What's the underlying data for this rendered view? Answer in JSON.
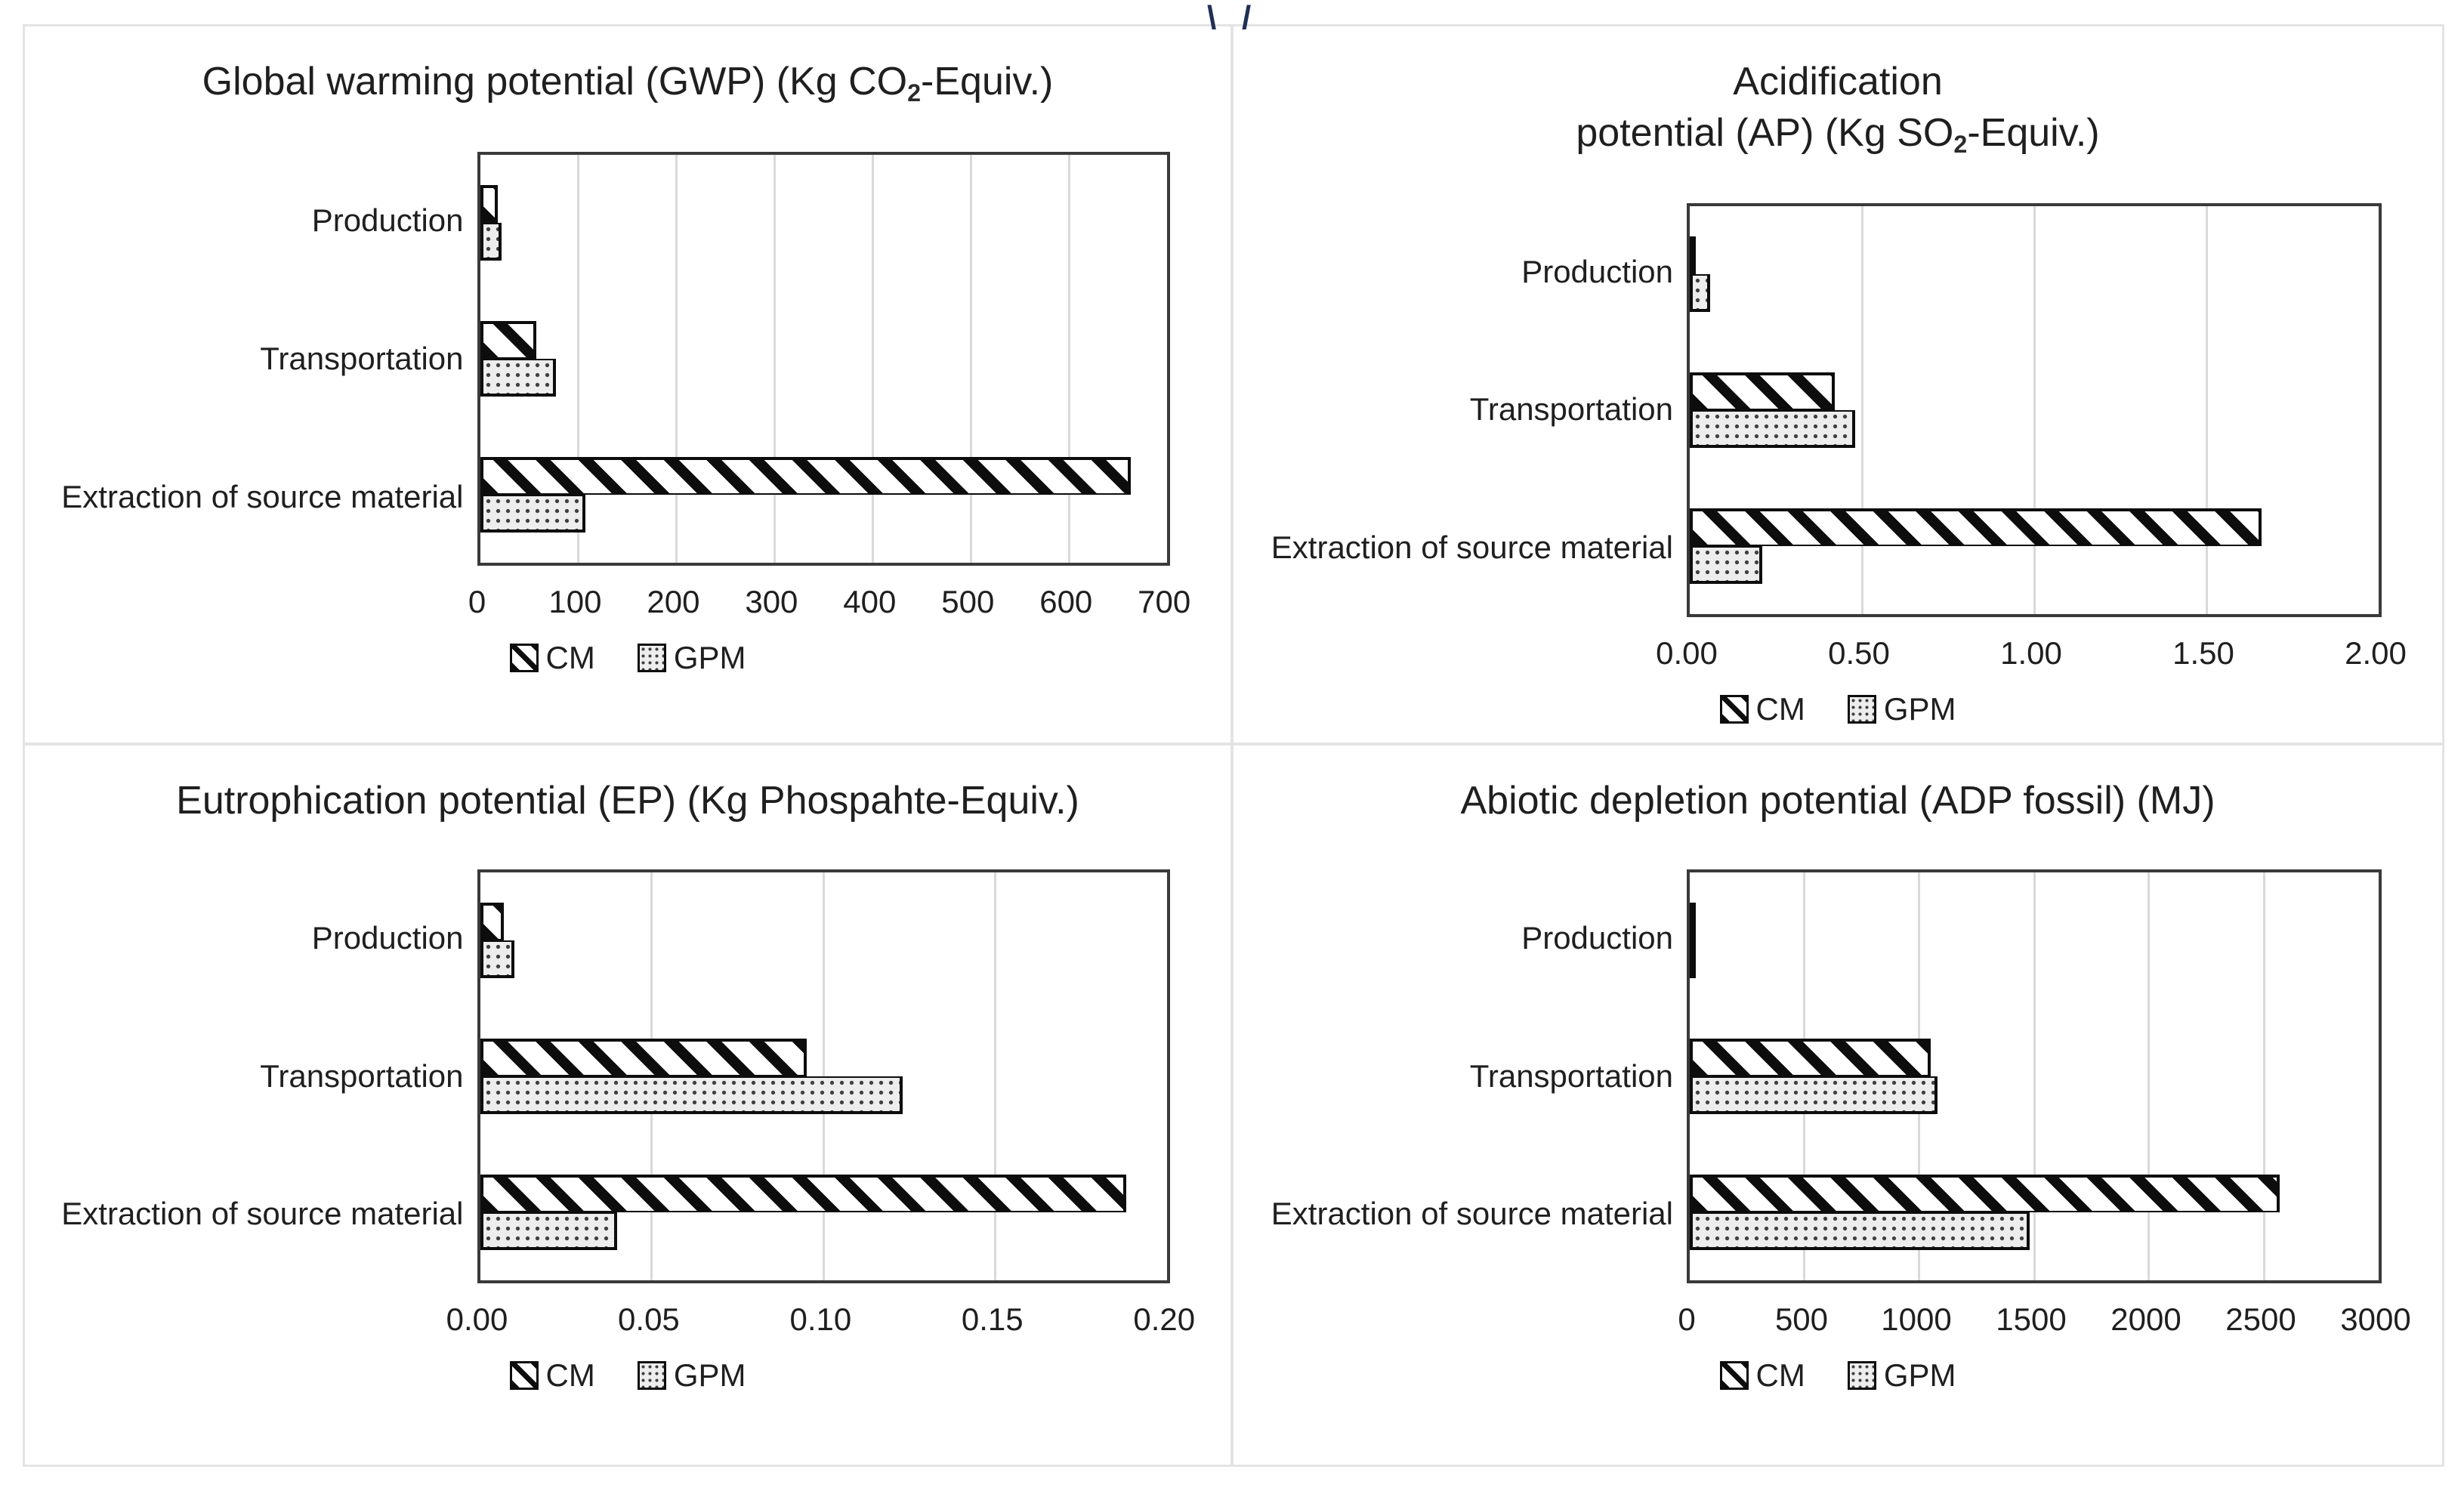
{
  "figure": {
    "stray_marks": [
      "\\",
      "/"
    ]
  },
  "colors": {
    "background": "#ffffff",
    "text": "#1f1f1f",
    "plot_border": "#3a3a3a",
    "gridline": "#d9d9d9",
    "bar_border": "#0d0d0d",
    "cm_stripe": "#0d0d0d",
    "gpm_fill": "#ededed",
    "gpm_dot": "#3f3f3f",
    "frame_border": "#e4e4e4"
  },
  "chart_data": [
    {
      "type": "bar",
      "orientation": "horizontal",
      "title": {
        "lines": [
          {
            "pre": "Global warming potential (GWP) (Kg CO",
            "sub": "2",
            "post": "-Equiv.)"
          }
        ]
      },
      "categories": [
        "Production",
        "Transportation",
        "Extraction of source material"
      ],
      "series": [
        {
          "name": "CM",
          "pattern": "diagonal-hatch",
          "values": [
            18,
            57,
            663
          ]
        },
        {
          "name": "GPM",
          "pattern": "dotted",
          "values": [
            22,
            77,
            107
          ]
        }
      ],
      "xlim": [
        0,
        700
      ],
      "tick_labels": [
        "0",
        "100",
        "200",
        "300",
        "400",
        "500",
        "600",
        "700"
      ],
      "grid": true,
      "legend_position": "bottom"
    },
    {
      "type": "bar",
      "orientation": "horizontal",
      "title": {
        "lines": [
          {
            "pre": "Acidification",
            "sub": "",
            "post": ""
          },
          {
            "pre": "potential (AP) (Kg SO",
            "sub": "2",
            "post": "-Equiv.)"
          }
        ]
      },
      "categories": [
        "Production",
        "Transportation",
        "Extraction of source material"
      ],
      "series": [
        {
          "name": "CM",
          "pattern": "diagonal-hatch",
          "values": [
            0.01,
            0.42,
            1.66
          ]
        },
        {
          "name": "GPM",
          "pattern": "dotted",
          "values": [
            0.06,
            0.48,
            0.21
          ]
        }
      ],
      "xlim": [
        0,
        2
      ],
      "tick_labels": [
        "0.00",
        "0.50",
        "1.00",
        "1.50",
        "2.00"
      ],
      "grid": true,
      "legend_position": "bottom"
    },
    {
      "type": "bar",
      "orientation": "horizontal",
      "title": {
        "lines": [
          {
            "pre": "Eutrophication potential (EP) (Kg Phospahte-Equiv.)",
            "sub": "",
            "post": ""
          }
        ]
      },
      "categories": [
        "Production",
        "Transportation",
        "Extraction of source material"
      ],
      "series": [
        {
          "name": "CM",
          "pattern": "diagonal-hatch",
          "values": [
            0.007,
            0.095,
            0.188
          ]
        },
        {
          "name": "GPM",
          "pattern": "dotted",
          "values": [
            0.01,
            0.123,
            0.04
          ]
        }
      ],
      "xlim": [
        0,
        0.2
      ],
      "tick_labels": [
        "0.00",
        "0.05",
        "0.10",
        "0.15",
        "0.20"
      ],
      "grid": true,
      "legend_position": "bottom"
    },
    {
      "type": "bar",
      "orientation": "horizontal",
      "title": {
        "lines": [
          {
            "pre": "Abiotic depletion potential (ADP fossil) (MJ)",
            "sub": "",
            "post": ""
          }
        ]
      },
      "categories": [
        "Production",
        "Transportation",
        "Extraction of source material"
      ],
      "series": [
        {
          "name": "CM",
          "pattern": "diagonal-hatch",
          "values": [
            5,
            1050,
            2570
          ]
        },
        {
          "name": "GPM",
          "pattern": "dotted",
          "values": [
            10,
            1080,
            1480
          ]
        }
      ],
      "xlim": [
        0,
        3000
      ],
      "tick_labels": [
        "0",
        "500",
        "1000",
        "1500",
        "2000",
        "2500",
        "3000"
      ],
      "grid": true,
      "legend_position": "bottom"
    }
  ]
}
